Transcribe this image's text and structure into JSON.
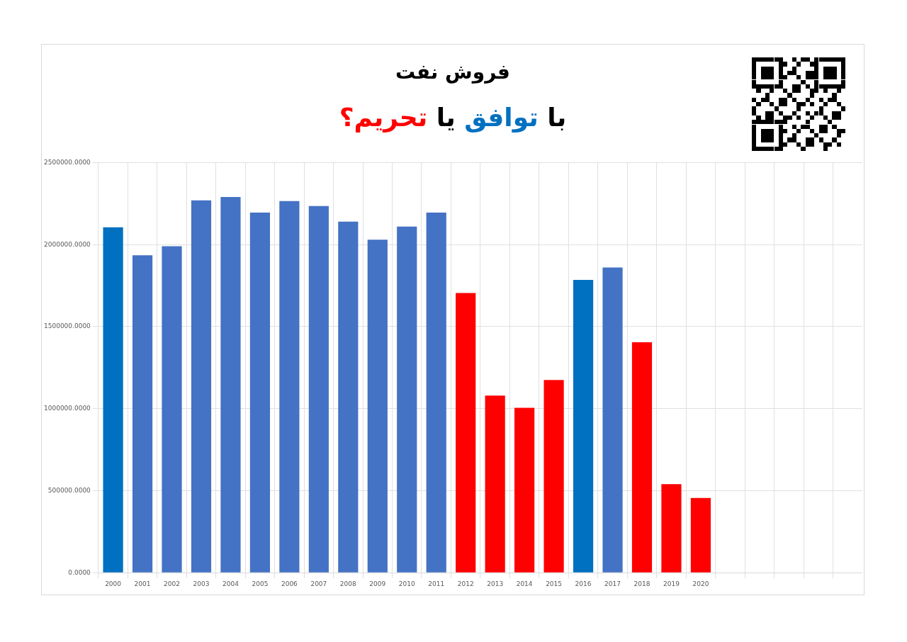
{
  "chart_data": {
    "type": "bar",
    "title": "فروش نفت",
    "subtitle": "با توافق یا تحریم؟",
    "categories": [
      "2000",
      "2001",
      "2002",
      "2003",
      "2004",
      "2005",
      "2006",
      "2007",
      "2008",
      "2009",
      "2010",
      "2011",
      "2012",
      "2013",
      "2014",
      "2015",
      "2016",
      "2017",
      "2018",
      "2019",
      "2020",
      null,
      null,
      null,
      null,
      null
    ],
    "values": [
      2105000,
      1935000,
      1990000,
      2270000,
      2290000,
      2195000,
      2265000,
      2235000,
      2140000,
      2030000,
      2110000,
      2195000,
      1705000,
      1080000,
      1005000,
      1175000,
      1785000,
      1860000,
      1405000,
      540000,
      455000,
      null,
      null,
      null,
      null,
      null
    ],
    "colors": [
      "#0070c0",
      "#4472c4",
      "#4472c4",
      "#4472c4",
      "#4472c4",
      "#4472c4",
      "#4472c4",
      "#4472c4",
      "#4472c4",
      "#4472c4",
      "#4472c4",
      "#4472c4",
      "#ff0000",
      "#ff0000",
      "#ff0000",
      "#ff0000",
      "#0070c0",
      "#4472c4",
      "#ff0000",
      "#ff0000",
      "#ff0000",
      null,
      null,
      null,
      null,
      null
    ],
    "ylim": [
      0,
      2500000
    ],
    "yticks": [
      {
        "value": 0,
        "label": "0.0000"
      },
      {
        "value": 500000,
        "label": "500000.0000"
      },
      {
        "value": 1000000,
        "label": "1000000.0000"
      },
      {
        "value": 1500000,
        "label": "1500000.0000"
      },
      {
        "value": 2000000,
        "label": "2000000.0000"
      },
      {
        "value": 2500000,
        "label": "2500000.0000"
      }
    ],
    "grid": true
  }
}
